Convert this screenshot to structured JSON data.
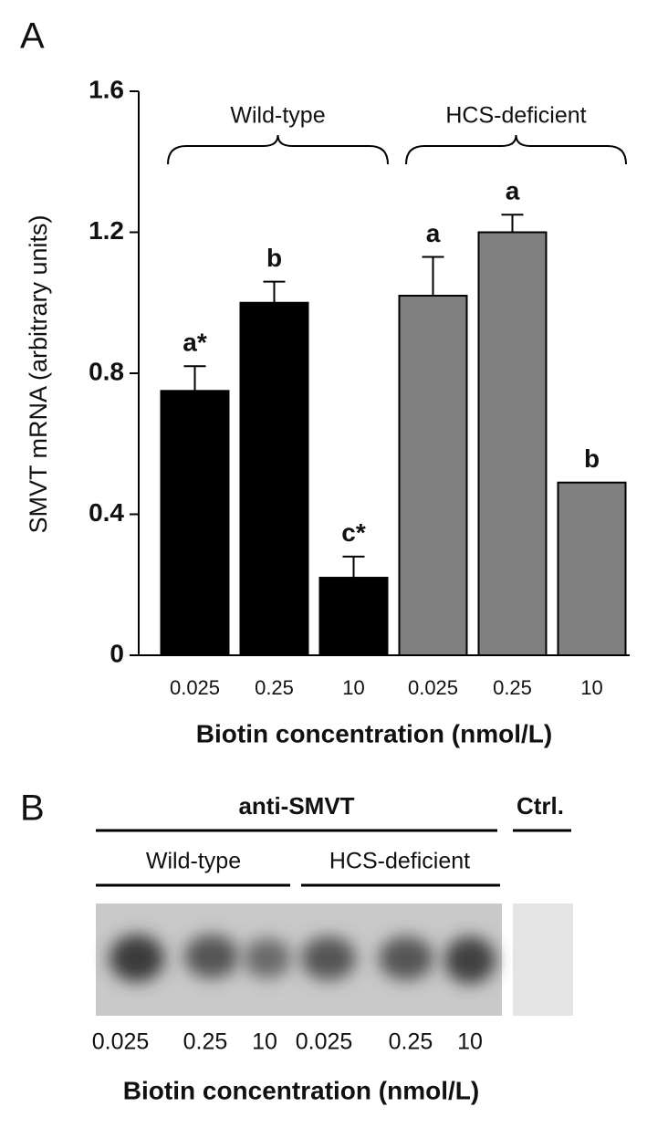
{
  "chart_data": {
    "type": "bar",
    "panel_label": "A",
    "ylabel": "SMVT mRNA (arbitrary units)",
    "xlabel": "Biotin concentration (nmol/L)",
    "categories": [
      "0.025",
      "0.25",
      "10"
    ],
    "series": [
      {
        "name": "Wild-type",
        "color": "#000000",
        "values": [
          0.75,
          1.0,
          0.22
        ],
        "errors": [
          0.07,
          0.06,
          0.06
        ],
        "annotations": [
          "a*",
          "b",
          "c*"
        ]
      },
      {
        "name": "HCS-deficient",
        "color": "#808080",
        "values": [
          1.02,
          1.2,
          0.49
        ],
        "errors": [
          0.11,
          0.05,
          null
        ],
        "annotations": [
          "a",
          "a",
          "b"
        ]
      }
    ],
    "ylim": [
      0,
      1.6
    ],
    "yticks": [
      0,
      0.4,
      0.8,
      1.2,
      1.6
    ],
    "grid": false
  },
  "panel_b": {
    "panel_label": "B",
    "antibody": "anti-SMVT",
    "control": "Ctrl.",
    "groups": [
      "Wild-type",
      "HCS-deficient"
    ],
    "lanes": [
      "0.025",
      "0.25",
      "10",
      "0.025",
      "0.25",
      "10"
    ],
    "xlabel": "Biotin concentration (nmol/L)"
  }
}
